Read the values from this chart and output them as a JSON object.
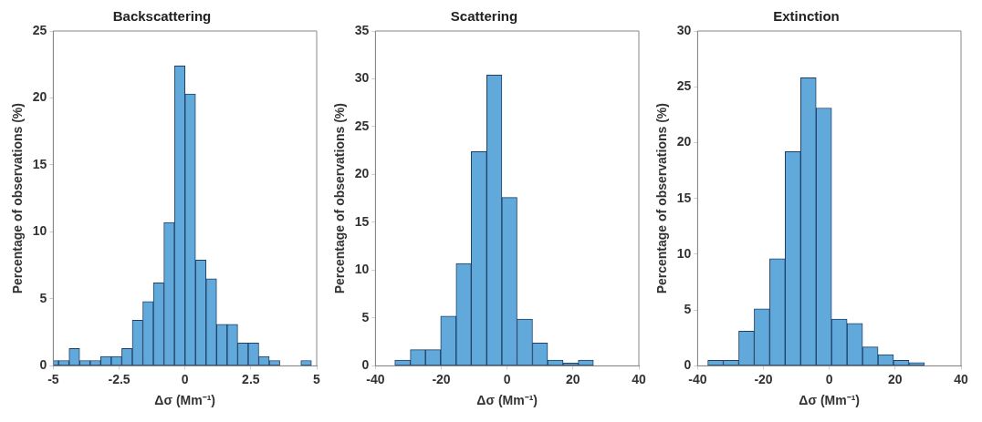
{
  "chart_data": [
    {
      "type": "histogram",
      "title": "Backscattering",
      "xlabel": "Δσ (Mm⁻¹)",
      "ylabel": "Percentage of observations (%)",
      "color": "#62a9db",
      "bins": [
        -5.0,
        -4.8,
        -4.4,
        -4.0,
        -3.6,
        -3.2,
        -2.8,
        -2.4,
        -2.0,
        -1.6,
        -1.2,
        -0.8,
        -0.4,
        0.0,
        0.4,
        0.8,
        1.2,
        1.6,
        2.0,
        2.4,
        2.8,
        3.2,
        3.6,
        4.0,
        4.4,
        4.8
      ],
      "values": [
        0.4,
        0.4,
        1.3,
        0.4,
        0.4,
        0.7,
        0.7,
        1.3,
        3.4,
        4.8,
        6.2,
        10.7,
        22.4,
        20.3,
        7.9,
        6.5,
        3.1,
        3.1,
        1.7,
        1.7,
        0.7,
        0.4,
        0,
        0,
        0.4
      ],
      "xlim": [
        -5,
        5
      ],
      "xticks": [
        -5,
        -2.5,
        0,
        2.5,
        5
      ],
      "ylim": [
        0,
        25
      ],
      "yticks": [
        0,
        5,
        10,
        15,
        20,
        25
      ],
      "grid": false
    },
    {
      "type": "histogram",
      "title": "Scattering",
      "xlabel": "Δσ (Mm⁻¹)",
      "ylabel": "Percentage of observations (%)",
      "color": "#62a9db",
      "bins": [
        -34.1,
        -29.4,
        -24.8,
        -20.2,
        -15.5,
        -10.9,
        -6.2,
        -1.6,
        3.0,
        7.7,
        12.3,
        17.0,
        21.6,
        26.2
      ],
      "values": [
        0.6,
        1.7,
        1.7,
        5.2,
        10.7,
        22.4,
        30.4,
        17.6,
        4.9,
        2.4,
        0.6,
        0.3,
        0.6
      ],
      "xlim": [
        -40,
        40
      ],
      "xticks": [
        -40,
        -20,
        0,
        20,
        40
      ],
      "ylim": [
        0,
        35
      ],
      "yticks": [
        0,
        5,
        10,
        15,
        20,
        25,
        30,
        35
      ],
      "grid": false
    },
    {
      "type": "histogram",
      "title": "Extinction",
      "xlabel": "Δσ (Mm⁻¹)",
      "ylabel": "Percentage of observations (%)",
      "color": "#62a9db",
      "bins": [
        -36.9,
        -32.2,
        -27.5,
        -22.8,
        -18.1,
        -13.4,
        -8.7,
        -4.0,
        0.7,
        5.4,
        10.1,
        14.8,
        19.5,
        24.2,
        28.9
      ],
      "values": [
        0.5,
        0.5,
        3.1,
        5.1,
        9.6,
        19.2,
        25.8,
        23.1,
        4.2,
        3.8,
        1.7,
        1.0,
        0.5,
        0.3
      ],
      "xlim": [
        -40,
        40
      ],
      "xticks": [
        -40,
        -20,
        0,
        20,
        40
      ],
      "ylim": [
        0,
        30
      ],
      "yticks": [
        0,
        5,
        10,
        15,
        20,
        25,
        30
      ],
      "grid": false
    }
  ]
}
